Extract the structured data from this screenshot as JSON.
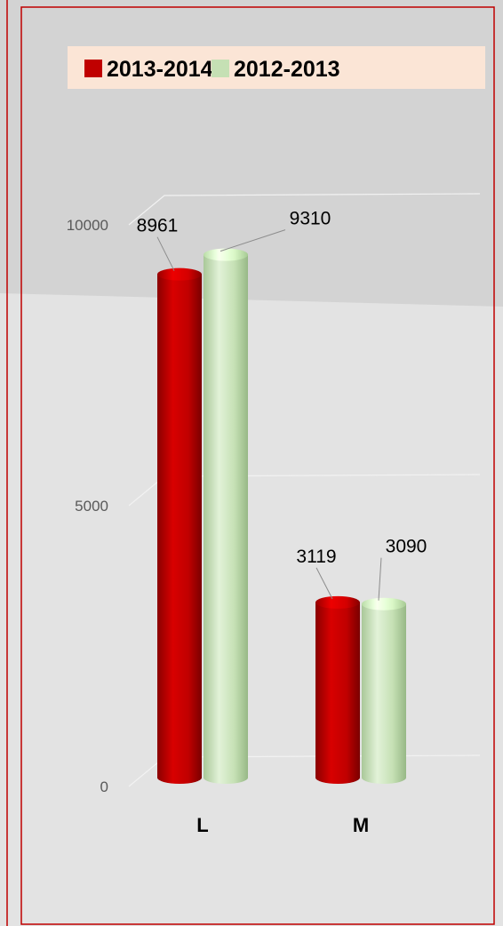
{
  "chart_data": {
    "type": "bar",
    "categories": [
      "L",
      "M"
    ],
    "series": [
      {
        "name": "2013-2014",
        "color": "#c00000",
        "values": [
          8961,
          3119
        ]
      },
      {
        "name": "2012-2013",
        "color": "#c5e0b4",
        "values": [
          9310,
          3090
        ]
      }
    ],
    "ylim": [
      0,
      10000
    ],
    "yticks": [
      0,
      5000,
      10000
    ],
    "grid": true,
    "legend": "top"
  }
}
